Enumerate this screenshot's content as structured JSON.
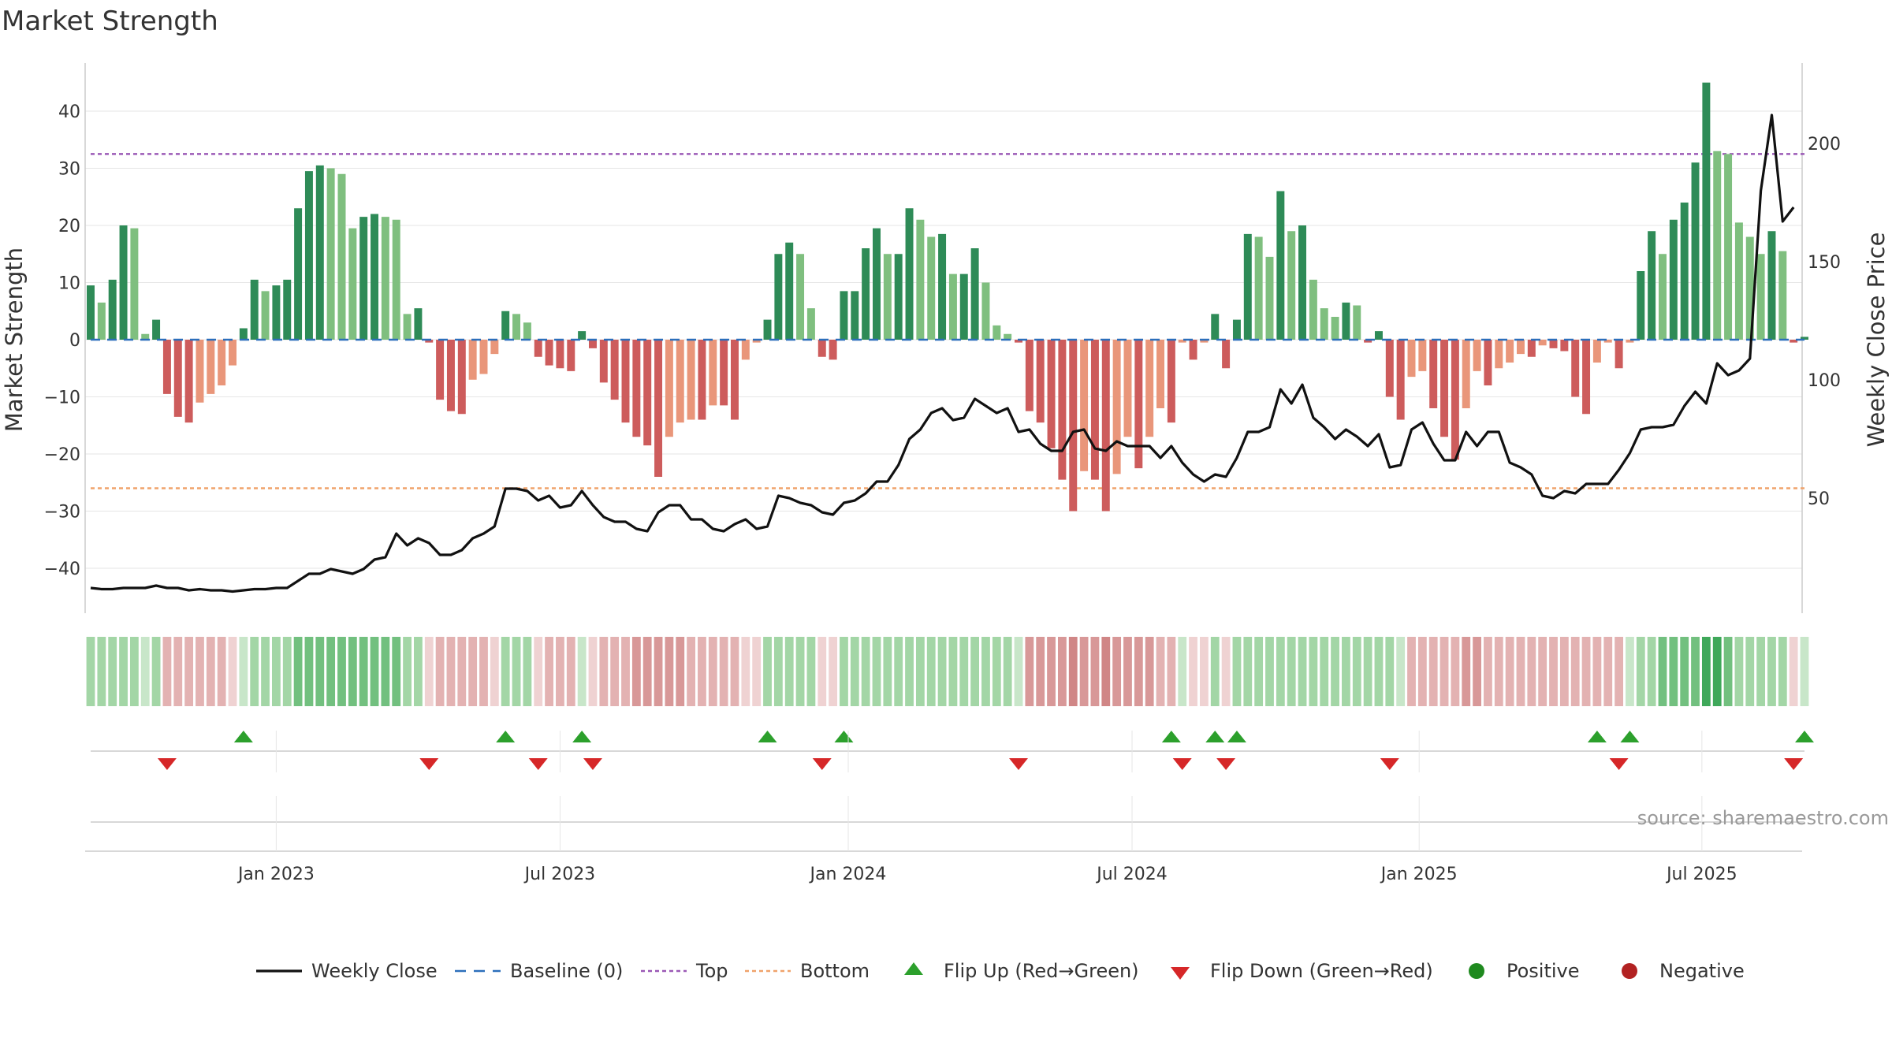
{
  "chart_data": {
    "type": "bar+line",
    "title": "Market Strength",
    "ylabel_left": "Market Strength",
    "ylabel_right": "Weekly Close Price",
    "left_ylim": [
      -45,
      47
    ],
    "left_ticks": [
      40,
      30,
      20,
      10,
      0,
      -10,
      -20,
      -30,
      -40
    ],
    "left_tick_labels": [
      "40",
      "30",
      "20",
      "10",
      "0",
      "−10",
      "−20",
      "−30",
      "−40"
    ],
    "right_ylim": [
      0,
      230
    ],
    "right_ticks": [
      200,
      150,
      100,
      50
    ],
    "right_tick_labels": [
      "200",
      "150",
      "100",
      "50"
    ],
    "top_threshold": 32.5,
    "bottom_threshold": -26,
    "x_range": [
      "2022-09-05",
      "2025-09-22"
    ],
    "date_ticks": [
      {
        "label": "Jan 2023",
        "week": 17
      },
      {
        "label": "Jul 2023",
        "week": 43
      },
      {
        "label": "Jan 2024",
        "week": 69.4
      },
      {
        "label": "Jul 2024",
        "week": 95.4
      },
      {
        "label": "Jan 2025",
        "week": 121.7
      },
      {
        "label": "Jul 2025",
        "week": 147.6
      }
    ],
    "strength": [
      9.5,
      6.5,
      10.5,
      20,
      19.5,
      1,
      3.5,
      -9.5,
      -13.5,
      -14.5,
      -11,
      -9.5,
      -8,
      -4.5,
      2,
      10.5,
      8.5,
      9.5,
      10.5,
      23,
      29.5,
      30.5,
      30,
      29,
      19.5,
      21.5,
      22,
      21.5,
      21,
      4.5,
      5.5,
      -0.5,
      -10.5,
      -12.5,
      -13,
      -7,
      -6,
      -2.5,
      5,
      4.5,
      3,
      -3,
      -4.5,
      -5,
      -5.5,
      1.5,
      -1.5,
      -7.5,
      -10.5,
      -14.5,
      -17,
      -18.5,
      -24,
      -17,
      -14.5,
      -14,
      -14,
      -11.5,
      -11.5,
      -14,
      -3.5,
      -0.5,
      3.5,
      15,
      17,
      15,
      5.5,
      -3,
      -3.5,
      8.5,
      8.5,
      16,
      19.5,
      15,
      15,
      23,
      21,
      18,
      18.5,
      11.5,
      11.5,
      16,
      10,
      2.5,
      1,
      -0.5,
      -12.5,
      -14.5,
      -19,
      -24.5,
      -30,
      -23,
      -24.5,
      -30,
      -23.5,
      -17,
      -22.5,
      -17,
      -12,
      -14.5,
      -0.5,
      -3.5,
      -0.5,
      4.5,
      -5,
      3.5,
      18.5,
      18,
      14.5,
      26,
      19,
      20,
      10.5,
      5.5,
      4,
      6.5,
      6,
      -0.5,
      1.5,
      -10,
      -14,
      -6.5,
      -5.5,
      -12,
      -17,
      -21,
      -12,
      -5.5,
      -8,
      -5,
      -4,
      -2.5,
      -3,
      -1,
      -1.5,
      -2,
      -10,
      -13,
      -4,
      -0.5,
      -5,
      -0.5,
      12,
      19,
      15,
      21,
      24,
      31,
      45,
      33,
      32.5,
      20.5,
      18,
      15,
      19,
      15.5,
      -0.5,
      0.5
    ],
    "weekly_close": [
      12,
      11.5,
      11.5,
      12,
      12,
      12,
      13,
      12,
      12,
      11,
      11.5,
      11,
      11,
      10.5,
      11,
      11.5,
      11.5,
      12,
      12,
      15,
      18,
      18,
      20,
      19,
      18,
      20,
      24,
      25,
      35,
      30,
      33,
      31,
      26,
      26,
      28,
      33,
      35,
      38,
      54,
      54,
      53,
      49,
      51,
      46,
      47,
      53,
      47,
      42,
      40,
      40,
      37,
      36,
      44,
      47,
      47,
      41,
      41,
      37,
      36,
      39,
      41,
      37,
      38,
      51,
      50,
      48,
      47,
      44,
      43,
      48,
      49,
      52,
      57,
      57,
      64,
      75,
      79,
      86,
      88,
      83,
      84,
      92,
      89,
      86,
      88,
      78,
      79,
      73,
      70,
      70,
      78,
      79,
      71,
      70,
      74,
      72,
      72,
      72,
      67,
      72,
      65,
      60,
      57,
      60,
      59,
      67,
      78,
      78,
      80,
      96,
      90,
      98,
      84,
      80,
      75,
      79,
      76,
      72,
      77,
      63,
      64,
      79,
      82,
      73,
      66,
      66,
      78,
      72,
      78,
      78,
      65,
      63,
      60,
      51,
      50,
      53,
      52,
      56,
      56,
      56,
      62,
      69,
      79,
      80,
      80,
      81,
      89,
      95,
      90,
      107,
      102,
      104,
      109,
      180,
      212,
      167,
      173
    ],
    "status_strip": [
      2,
      2,
      2,
      2,
      2,
      1,
      2,
      -2,
      -2,
      -2,
      -2,
      -2,
      -2,
      -1,
      1,
      2,
      2,
      2,
      2,
      3,
      3,
      3,
      3,
      3,
      3,
      3,
      3,
      3,
      3,
      2,
      2,
      -1,
      -2,
      -2,
      -2,
      -2,
      -2,
      -1,
      2,
      2,
      2,
      -1,
      -2,
      -2,
      -2,
      1,
      -1,
      -2,
      -2,
      -2,
      -3,
      -3,
      -3,
      -3,
      -3,
      -2,
      -2,
      -2,
      -2,
      -2,
      -1,
      -1,
      2,
      2,
      2,
      2,
      2,
      -1,
      -1,
      2,
      2,
      2,
      2,
      2,
      2,
      2,
      2,
      2,
      2,
      2,
      2,
      2,
      2,
      2,
      2,
      1,
      -3,
      -3,
      -3,
      -3,
      -4,
      -3,
      -3,
      -4,
      -3,
      -3,
      -3,
      -3,
      -2,
      -2,
      1,
      -1,
      -1,
      2,
      -1,
      2,
      2,
      2,
      2,
      2,
      2,
      2,
      2,
      2,
      2,
      2,
      2,
      2,
      2,
      2,
      1,
      -2,
      -2,
      -2,
      -2,
      -2,
      -3,
      -3,
      -2,
      -2,
      -2,
      -2,
      -2,
      -2,
      -2,
      -2,
      -2,
      -2,
      -2,
      -2,
      -2,
      1,
      2,
      2,
      3,
      3,
      3,
      3,
      4,
      4,
      3,
      2,
      2,
      2,
      2,
      2,
      -1,
      1
    ],
    "flip_up_weeks": [
      14,
      38,
      45,
      62,
      69,
      99,
      103,
      105,
      138,
      141,
      157
    ],
    "flip_down_weeks": [
      7,
      31,
      41,
      46,
      67,
      85,
      100,
      104,
      119,
      140,
      156
    ],
    "legend": [
      {
        "label": "Weekly Close",
        "marker": "line-solid",
        "color": "#111111"
      },
      {
        "label": "Baseline (0)",
        "marker": "line-dashed",
        "color": "#2c6fbb"
      },
      {
        "label": "Top",
        "marker": "line-dotted",
        "color": "#9b59b6"
      },
      {
        "label": "Bottom",
        "marker": "line-dotted",
        "color": "#f0a36b"
      },
      {
        "label": "Flip Up (Red→Green)",
        "marker": "triangle-up",
        "color": "#2ca02c"
      },
      {
        "label": "Flip Down (Green→Red)",
        "marker": "triangle-down",
        "color": "#d62728"
      },
      {
        "label": "Positive",
        "marker": "circle",
        "color": "#1f8a1f"
      },
      {
        "label": "Negative",
        "marker": "circle",
        "color": "#b22222"
      }
    ],
    "source": "source: sharemaestro.com"
  },
  "colors": {
    "bar_strong_pos": "#2e8b57",
    "bar_light_pos": "#7fbf7f",
    "bar_strong_neg": "#cd5c5c",
    "bar_light_neg": "#e9967a",
    "baseline": "#2c6fbb",
    "top": "#9b59b6",
    "bottom": "#f0a36b",
    "close_line": "#111111",
    "flip_up": "#2ca02c",
    "flip_down": "#d62728",
    "grid": "#e6e6e6",
    "axis": "#cccccc"
  }
}
